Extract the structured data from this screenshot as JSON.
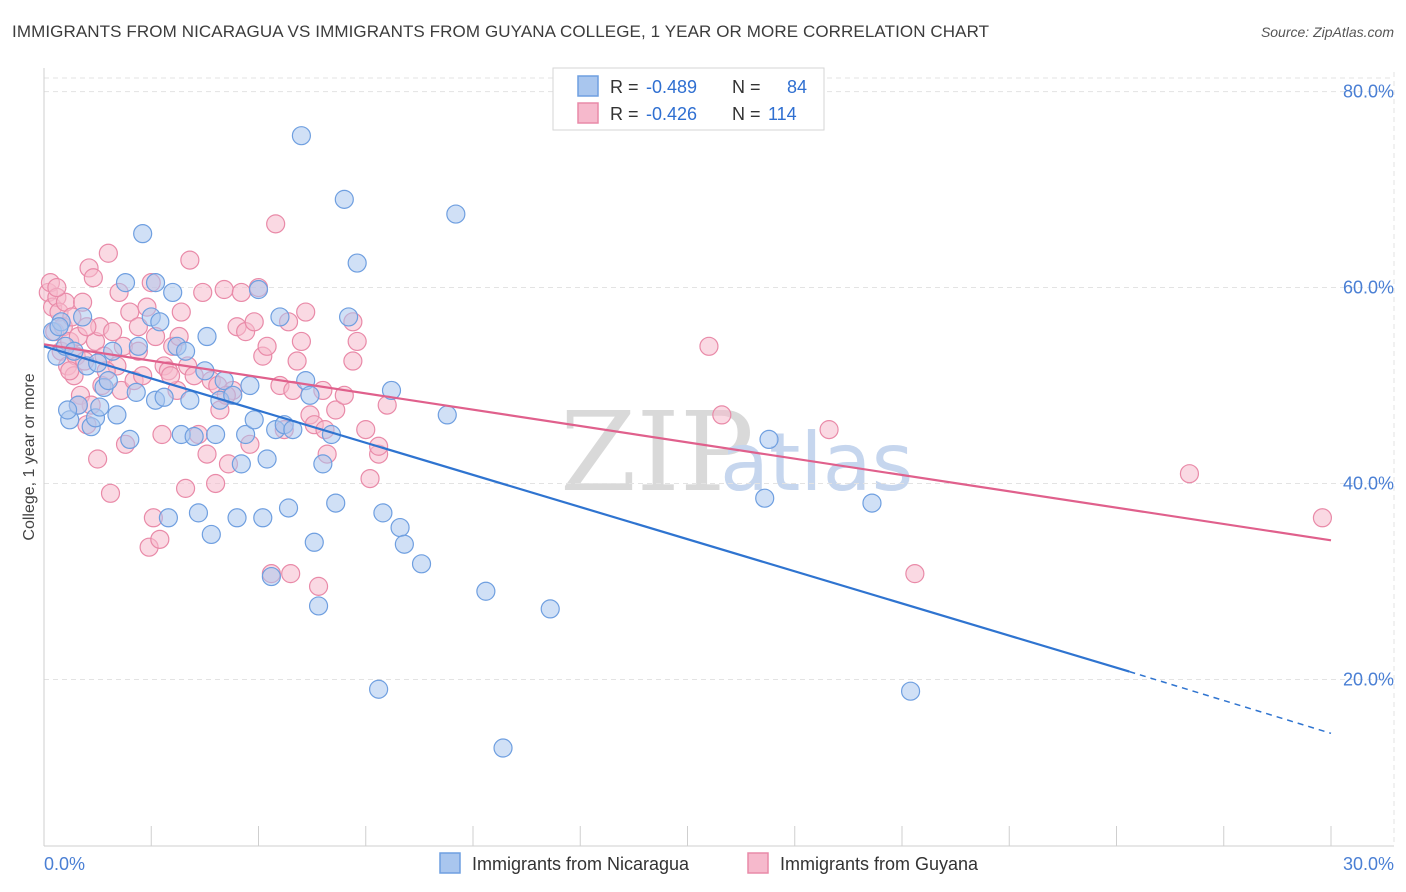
{
  "header": {
    "title": "IMMIGRANTS FROM NICARAGUA VS IMMIGRANTS FROM GUYANA COLLEGE, 1 YEAR OR MORE CORRELATION CHART",
    "source": "Source: ZipAtlas.com"
  },
  "watermark": {
    "zip": "ZIP",
    "atlas": "atlas"
  },
  "legend_box": {
    "rows": [
      {
        "r_label": "R = ",
        "r_value": "-0.489",
        "n_label": "N = ",
        "n_value": "84"
      },
      {
        "r_label": "R = ",
        "r_value": "-0.426",
        "n_label": "N = ",
        "n_value": "114"
      }
    ]
  },
  "bottom_legend": {
    "items": [
      "Immigrants from Nicaragua",
      "Immigrants from Guyana"
    ]
  },
  "chart_data": {
    "type": "scatter",
    "title": "IMMIGRANTS FROM NICARAGUA VS IMMIGRANTS FROM GUYANA COLLEGE, 1 YEAR OR MORE CORRELATION CHART",
    "xlabel": "",
    "ylabel": "College, 1 year or more",
    "xlim": [
      0,
      30
    ],
    "ylim": [
      3,
      82
    ],
    "x_tick_labels": [
      "0.0%",
      "30.0%"
    ],
    "y_ticks": [
      20,
      40,
      60,
      80
    ],
    "y_tick_labels": [
      "20.0%",
      "40.0%",
      "60.0%",
      "80.0%"
    ],
    "colors": {
      "nicaragua_fill": "#a9c6ee",
      "nicaragua_stroke": "#6f9fe0",
      "nicaragua_line": "#2f74d0",
      "guyana_fill": "#f6b9cc",
      "guyana_stroke": "#e98aa8",
      "guyana_line": "#e0608c",
      "grid": "#e3e3e3",
      "axis_text": "#4a7fd4"
    },
    "series": [
      {
        "name": "Immigrants from Nicaragua",
        "r": -0.489,
        "n": 84,
        "trend": {
          "x0": 0.0,
          "y0": 54.0,
          "x1": 25.3,
          "y1": 20.8,
          "x_dash_end": 30.0,
          "y_dash_end": 14.5
        },
        "points": [
          [
            0.2,
            55.5
          ],
          [
            0.3,
            53.0
          ],
          [
            0.4,
            56.5
          ],
          [
            0.5,
            54.0
          ],
          [
            0.6,
            46.5
          ],
          [
            0.7,
            53.5
          ],
          [
            0.8,
            48.0
          ],
          [
            0.9,
            57.0
          ],
          [
            1.0,
            52.0
          ],
          [
            1.1,
            45.8
          ],
          [
            1.2,
            46.7
          ],
          [
            1.3,
            47.8
          ],
          [
            1.4,
            49.8
          ],
          [
            1.5,
            50.5
          ],
          [
            1.6,
            53.5
          ],
          [
            1.7,
            47.0
          ],
          [
            1.9,
            60.5
          ],
          [
            2.0,
            44.5
          ],
          [
            2.2,
            54.0
          ],
          [
            2.3,
            65.5
          ],
          [
            2.5,
            57.0
          ],
          [
            2.6,
            60.5
          ],
          [
            2.6,
            48.5
          ],
          [
            2.7,
            56.5
          ],
          [
            2.8,
            48.8
          ],
          [
            2.9,
            36.5
          ],
          [
            3.0,
            59.5
          ],
          [
            3.1,
            54.0
          ],
          [
            3.2,
            45.0
          ],
          [
            3.3,
            53.5
          ],
          [
            3.4,
            48.5
          ],
          [
            3.5,
            44.8
          ],
          [
            3.6,
            37.0
          ],
          [
            3.8,
            55.0
          ],
          [
            3.9,
            34.8
          ],
          [
            4.0,
            45.0
          ],
          [
            4.1,
            48.5
          ],
          [
            4.2,
            50.5
          ],
          [
            4.4,
            49.0
          ],
          [
            4.5,
            36.5
          ],
          [
            4.6,
            42.0
          ],
          [
            4.7,
            45.0
          ],
          [
            4.8,
            50.0
          ],
          [
            4.9,
            46.5
          ],
          [
            5.0,
            59.8
          ],
          [
            5.1,
            36.5
          ],
          [
            5.2,
            42.5
          ],
          [
            5.3,
            30.5
          ],
          [
            5.4,
            45.5
          ],
          [
            5.5,
            57.0
          ],
          [
            5.6,
            46.0
          ],
          [
            5.7,
            37.5
          ],
          [
            5.8,
            45.5
          ],
          [
            6.0,
            75.5
          ],
          [
            6.1,
            50.5
          ],
          [
            6.2,
            49.0
          ],
          [
            6.3,
            34.0
          ],
          [
            6.4,
            27.5
          ],
          [
            6.5,
            42.0
          ],
          [
            6.7,
            45.0
          ],
          [
            6.8,
            38.0
          ],
          [
            7.0,
            69.0
          ],
          [
            7.1,
            57.0
          ],
          [
            7.3,
            62.5
          ],
          [
            7.8,
            19.0
          ],
          [
            7.9,
            37.0
          ],
          [
            8.1,
            49.5
          ],
          [
            8.3,
            35.5
          ],
          [
            8.4,
            33.8
          ],
          [
            8.8,
            31.8
          ],
          [
            9.4,
            47.0
          ],
          [
            9.6,
            67.5
          ],
          [
            10.3,
            29.0
          ],
          [
            10.7,
            13.0
          ],
          [
            11.8,
            27.2
          ],
          [
            16.8,
            38.5
          ],
          [
            16.9,
            44.5
          ],
          [
            19.3,
            38.0
          ],
          [
            20.2,
            18.8
          ],
          [
            0.35,
            56.0
          ],
          [
            0.55,
            47.5
          ],
          [
            1.25,
            52.3
          ],
          [
            2.15,
            49.3
          ],
          [
            3.75,
            51.5
          ]
        ]
      },
      {
        "name": "Immigrants from Guyana",
        "r": -0.426,
        "n": 114,
        "trend": {
          "x0": 0.0,
          "y0": 54.2,
          "x1": 30.0,
          "y1": 34.2
        },
        "points": [
          [
            0.1,
            59.5
          ],
          [
            0.15,
            60.5
          ],
          [
            0.2,
            58.0
          ],
          [
            0.25,
            55.5
          ],
          [
            0.3,
            59.0
          ],
          [
            0.35,
            57.5
          ],
          [
            0.4,
            53.5
          ],
          [
            0.45,
            56.0
          ],
          [
            0.5,
            58.5
          ],
          [
            0.55,
            52.0
          ],
          [
            0.6,
            54.5
          ],
          [
            0.65,
            57.0
          ],
          [
            0.7,
            51.0
          ],
          [
            0.75,
            53.0
          ],
          [
            0.8,
            55.0
          ],
          [
            0.85,
            49.0
          ],
          [
            0.9,
            58.5
          ],
          [
            0.95,
            52.5
          ],
          [
            1.0,
            46.0
          ],
          [
            1.05,
            62.0
          ],
          [
            1.1,
            48.0
          ],
          [
            1.15,
            61.0
          ],
          [
            1.2,
            54.5
          ],
          [
            1.25,
            42.5
          ],
          [
            1.3,
            56.0
          ],
          [
            1.35,
            50.0
          ],
          [
            1.4,
            53.0
          ],
          [
            1.5,
            63.5
          ],
          [
            1.55,
            39.0
          ],
          [
            1.6,
            55.5
          ],
          [
            1.7,
            52.0
          ],
          [
            1.75,
            59.5
          ],
          [
            1.8,
            49.5
          ],
          [
            1.85,
            54.0
          ],
          [
            1.9,
            44.0
          ],
          [
            2.0,
            57.5
          ],
          [
            2.1,
            50.5
          ],
          [
            2.2,
            53.5
          ],
          [
            2.3,
            51.0
          ],
          [
            2.4,
            58.0
          ],
          [
            2.45,
            33.5
          ],
          [
            2.5,
            60.5
          ],
          [
            2.55,
            36.5
          ],
          [
            2.6,
            55.0
          ],
          [
            2.7,
            34.3
          ],
          [
            2.75,
            45.0
          ],
          [
            2.8,
            52.0
          ],
          [
            2.9,
            51.5
          ],
          [
            3.0,
            54.0
          ],
          [
            3.1,
            49.5
          ],
          [
            3.2,
            57.5
          ],
          [
            3.3,
            39.5
          ],
          [
            3.35,
            52.0
          ],
          [
            3.4,
            62.8
          ],
          [
            3.5,
            51.0
          ],
          [
            3.6,
            45.0
          ],
          [
            3.7,
            59.5
          ],
          [
            3.8,
            43.0
          ],
          [
            3.9,
            50.5
          ],
          [
            4.0,
            40.0
          ],
          [
            4.05,
            50.0
          ],
          [
            4.1,
            47.5
          ],
          [
            4.2,
            59.8
          ],
          [
            4.3,
            42.0
          ],
          [
            4.4,
            49.5
          ],
          [
            4.5,
            56.0
          ],
          [
            4.6,
            59.5
          ],
          [
            4.7,
            55.5
          ],
          [
            4.8,
            44.0
          ],
          [
            4.9,
            56.5
          ],
          [
            5.0,
            60.0
          ],
          [
            5.1,
            53.0
          ],
          [
            5.2,
            54.0
          ],
          [
            5.3,
            30.8
          ],
          [
            5.4,
            66.5
          ],
          [
            5.5,
            50.0
          ],
          [
            5.6,
            45.5
          ],
          [
            5.7,
            56.5
          ],
          [
            5.8,
            49.5
          ],
          [
            5.9,
            52.5
          ],
          [
            6.0,
            54.5
          ],
          [
            6.1,
            57.5
          ],
          [
            6.2,
            47.0
          ],
          [
            6.3,
            46.0
          ],
          [
            6.4,
            29.5
          ],
          [
            6.5,
            49.5
          ],
          [
            6.6,
            43.0
          ],
          [
            6.8,
            47.5
          ],
          [
            7.0,
            49.0
          ],
          [
            7.2,
            52.5
          ],
          [
            7.3,
            54.5
          ],
          [
            7.5,
            45.5
          ],
          [
            7.6,
            40.5
          ],
          [
            7.8,
            43.0
          ],
          [
            8.0,
            48.0
          ],
          [
            15.5,
            54.0
          ],
          [
            15.8,
            47.0
          ],
          [
            18.3,
            45.5
          ],
          [
            20.3,
            30.8
          ],
          [
            26.7,
            41.0
          ],
          [
            29.8,
            36.5
          ],
          [
            2.95,
            51.0
          ],
          [
            1.45,
            51.5
          ],
          [
            0.6,
            51.5
          ],
          [
            3.15,
            55.0
          ],
          [
            4.25,
            49.0
          ],
          [
            5.75,
            30.8
          ],
          [
            6.55,
            45.5
          ],
          [
            7.2,
            56.5
          ],
          [
            1.0,
            56.0
          ],
          [
            0.3,
            60.0
          ],
          [
            2.2,
            56.0
          ],
          [
            0.8,
            48.0
          ],
          [
            7.8,
            43.8
          ]
        ]
      }
    ]
  }
}
